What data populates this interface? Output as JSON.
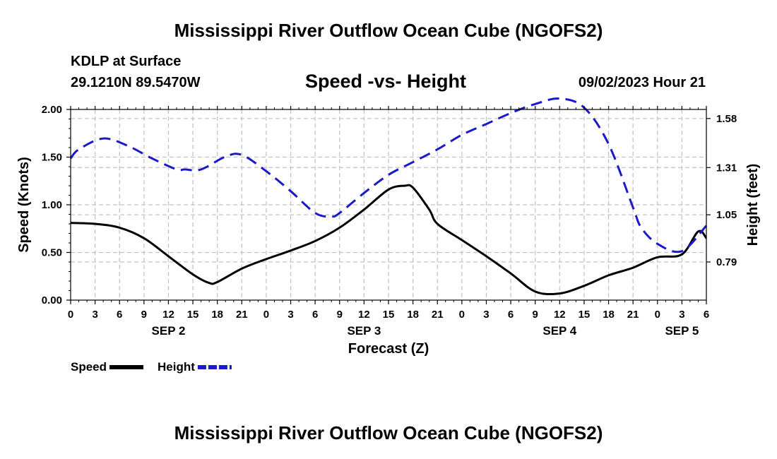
{
  "title_top": "Mississippi River Outflow Ocean Cube (NGOFS2)",
  "title_bottom": "Mississippi River Outflow Ocean Cube (NGOFS2)",
  "station": "KDLP at Surface",
  "coords": "29.1210N  89.5470W",
  "subtitle": "Speed -vs- Height",
  "datestamp": "09/02/2023 Hour 21",
  "chart_data": {
    "type": "line",
    "xlabel": "Forecast (Z)",
    "ylabel": "Speed (Knots)",
    "y2label": "Height (feet)",
    "x_range": [
      0,
      78
    ],
    "x_ticks": [
      0,
      3,
      6,
      9,
      12,
      15,
      18,
      21,
      24,
      27,
      30,
      33,
      36,
      39,
      42,
      45,
      48,
      51,
      54,
      57,
      60,
      63,
      66,
      69,
      72,
      75,
      78
    ],
    "x_tick_labels": [
      "0",
      "3",
      "6",
      "9",
      "12",
      "15",
      "18",
      "21",
      "0",
      "3",
      "6",
      "9",
      "12",
      "15",
      "18",
      "21",
      "0",
      "3",
      "6",
      "9",
      "12",
      "15",
      "18",
      "21",
      "0",
      "3",
      "6"
    ],
    "day_labels": [
      {
        "x": 12,
        "label": "SEP 2"
      },
      {
        "x": 36,
        "label": "SEP 3"
      },
      {
        "x": 60,
        "label": "SEP 4"
      },
      {
        "x": 75,
        "label": "SEP 5"
      }
    ],
    "ylim": [
      0,
      2
    ],
    "y_ticks": [
      0,
      0.5,
      1.0,
      1.5,
      2.0
    ],
    "y_tick_labels": [
      "0.00",
      "0.50",
      "1.00",
      "1.50",
      "2.00"
    ],
    "y2lim": [
      0.58,
      1.63
    ],
    "y2_ticks": [
      0.79,
      1.05,
      1.31,
      1.58
    ],
    "y2_tick_labels": [
      "0.79",
      "1.05",
      "1.31",
      "1.58"
    ],
    "grid": true,
    "legend": [
      {
        "label": "Speed",
        "color": "#000000",
        "style": "solid"
      },
      {
        "label": "Height",
        "color": "#1a1acc",
        "style": "dashed"
      }
    ],
    "series": [
      {
        "name": "Speed",
        "axis": "left",
        "color": "#000000",
        "x": [
          0,
          3,
          6,
          9,
          12,
          15,
          17,
          18,
          21,
          24,
          27,
          30,
          33,
          36,
          39,
          41,
          42,
          44,
          45,
          48,
          51,
          54,
          57,
          60,
          63,
          66,
          69,
          72,
          75,
          77,
          78
        ],
        "values": [
          0.81,
          0.8,
          0.76,
          0.65,
          0.46,
          0.27,
          0.18,
          0.19,
          0.33,
          0.43,
          0.52,
          0.62,
          0.76,
          0.95,
          1.16,
          1.2,
          1.18,
          0.95,
          0.8,
          0.63,
          0.46,
          0.28,
          0.09,
          0.07,
          0.15,
          0.26,
          0.34,
          0.45,
          0.48,
          0.72,
          0.65
        ]
      },
      {
        "name": "Height",
        "axis": "right",
        "color": "#1a1acc",
        "x": [
          0,
          1,
          4,
          7,
          10,
          13,
          14,
          16,
          19,
          21,
          24,
          27,
          30,
          32,
          33,
          36,
          39,
          42,
          45,
          48,
          51,
          54,
          57,
          60,
          63,
          66,
          69,
          70,
          72,
          75,
          78
        ],
        "values": [
          1.36,
          1.41,
          1.47,
          1.43,
          1.36,
          1.3,
          1.3,
          1.3,
          1.37,
          1.38,
          1.29,
          1.18,
          1.06,
          1.04,
          1.06,
          1.17,
          1.27,
          1.34,
          1.41,
          1.49,
          1.55,
          1.61,
          1.66,
          1.69,
          1.64,
          1.44,
          1.09,
          0.98,
          0.89,
          0.85,
          0.99
        ]
      }
    ]
  }
}
